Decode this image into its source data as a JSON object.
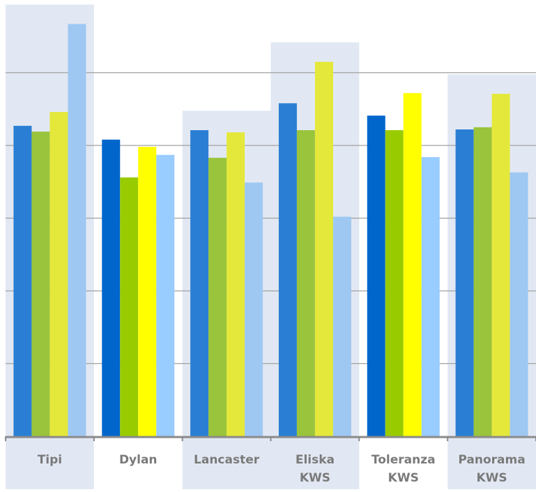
{
  "chart_data": {
    "type": "bar",
    "title": "",
    "xlabel": "",
    "ylabel": "",
    "ylim": [
      0,
      6
    ],
    "y_gridlines": [
      1,
      2,
      3,
      4,
      5
    ],
    "grid": true,
    "categories": [
      {
        "name": "Tipi",
        "lines": [
          "Tipi"
        ],
        "highlighted": true
      },
      {
        "name": "Dylan",
        "lines": [
          "Dylan"
        ],
        "highlighted": false
      },
      {
        "name": "Lancaster",
        "lines": [
          "Lancaster"
        ],
        "highlighted": true
      },
      {
        "name": "Eliska KWS",
        "lines": [
          "Eliska",
          "KWS"
        ],
        "highlighted": true
      },
      {
        "name": "Toleranza KWS",
        "lines": [
          "Toleranza",
          "KWS"
        ],
        "highlighted": false
      },
      {
        "name": "Panorama KWS",
        "lines": [
          "Panorama",
          "KWS"
        ],
        "highlighted": true
      }
    ],
    "series_colors_normal": [
      "#2a7fd4",
      "#99c43c",
      "#e4e83a",
      "#9ec8f2"
    ],
    "series_colors_alt": [
      "#0066cc",
      "#99cc00",
      "#ffff00",
      "#99ccff"
    ],
    "series": [
      {
        "values": [
          4.27,
          4.08,
          4.21,
          4.58,
          4.41,
          4.22
        ]
      },
      {
        "values": [
          4.19,
          3.56,
          3.83,
          4.21,
          4.21,
          4.25
        ]
      },
      {
        "values": [
          4.46,
          3.98,
          4.18,
          5.15,
          4.72,
          4.71
        ]
      },
      {
        "values": [
          5.67,
          3.87,
          3.49,
          3.02,
          3.84,
          3.63
        ]
      }
    ]
  }
}
